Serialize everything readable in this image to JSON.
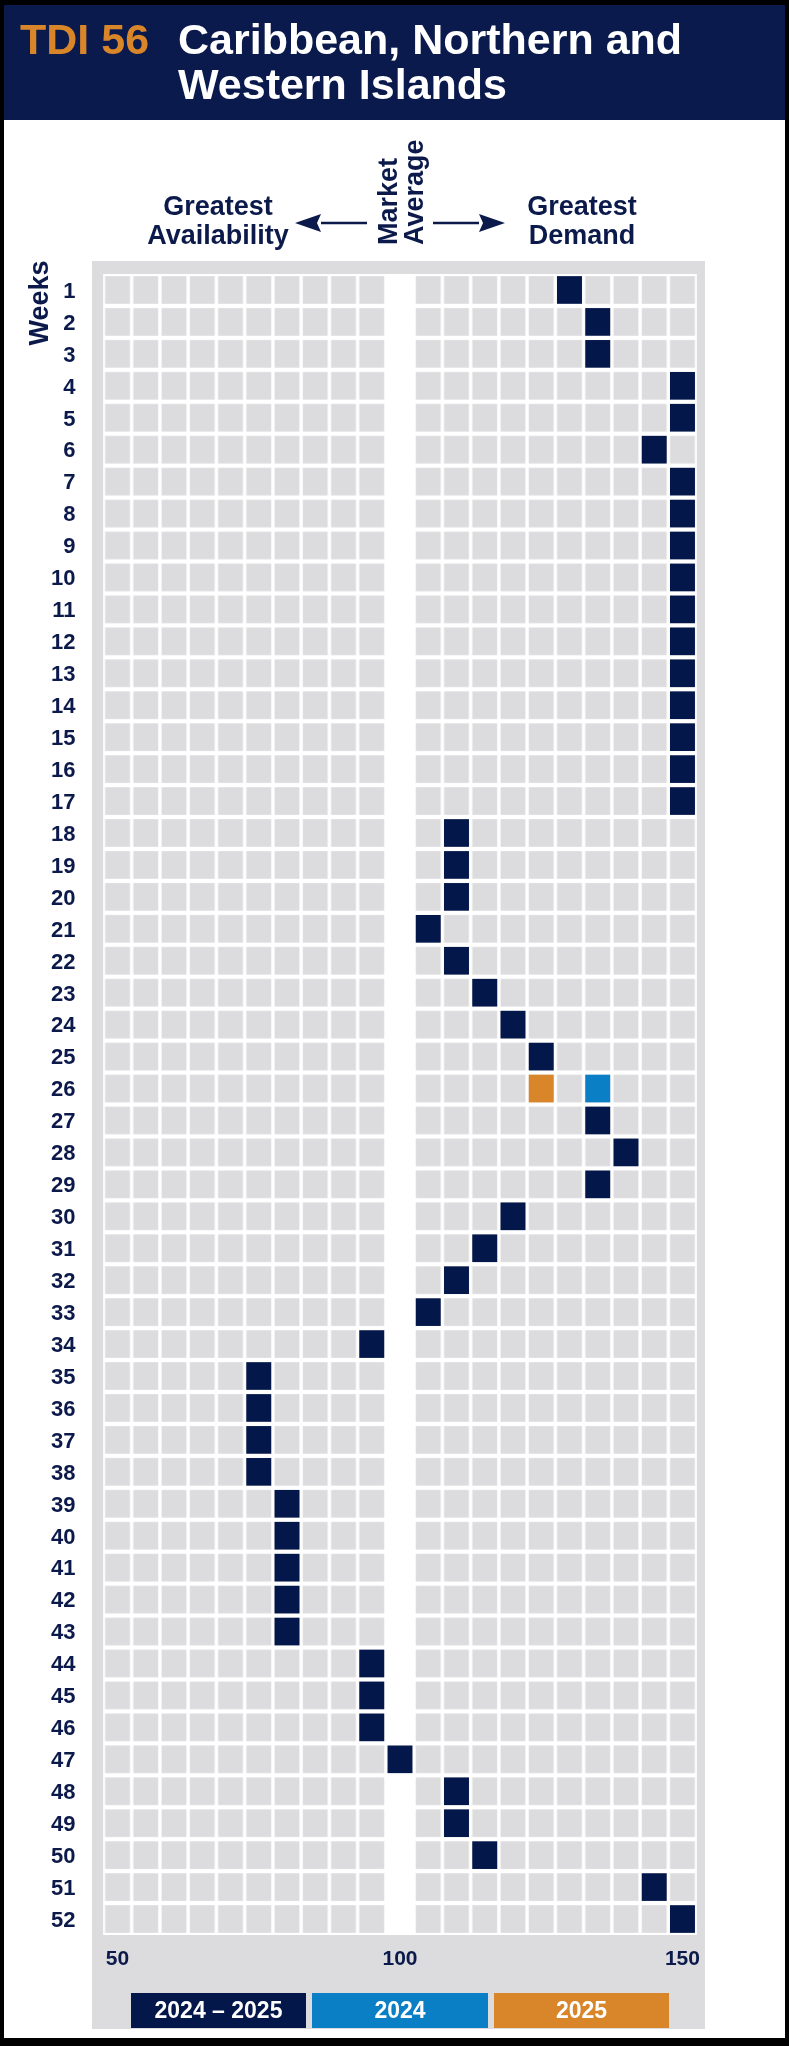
{
  "chart_data": {
    "type": "scatter",
    "title": "TDI 56",
    "subtitle": "Caribbean, Northern and Western Islands",
    "ylabel": "Weeks",
    "annotations": [
      "Greatest Availability",
      "Market Average",
      "Greatest Demand"
    ],
    "ref_lines": [
      {
        "axis": "x",
        "value": 100,
        "color": "#ffffff"
      }
    ],
    "series": [
      {
        "name": "2024 – 2025",
        "color": "#04174a",
        "x": [
          130,
          135,
          135,
          150,
          150,
          145,
          150,
          150,
          150,
          150,
          150,
          150,
          150,
          150,
          150,
          150,
          150,
          110,
          110,
          110,
          105,
          110,
          115,
          120,
          125,
          135,
          140,
          135,
          120,
          115,
          110,
          105,
          95,
          75,
          75,
          75,
          75,
          80,
          80,
          80,
          80,
          80,
          95,
          95,
          95,
          100,
          110,
          110,
          115,
          145,
          150
        ],
        "values": [
          1,
          2,
          3,
          4,
          5,
          6,
          7,
          8,
          9,
          10,
          11,
          12,
          13,
          14,
          15,
          16,
          17,
          18,
          19,
          20,
          21,
          22,
          23,
          24,
          25,
          27,
          28,
          29,
          30,
          31,
          32,
          33,
          34,
          35,
          36,
          37,
          38,
          39,
          40,
          41,
          42,
          43,
          44,
          45,
          46,
          47,
          48,
          49,
          50,
          51,
          52
        ]
      },
      {
        "name": "2024",
        "color": "#0a7fc6",
        "x": [
          135
        ],
        "values": [
          26
        ]
      },
      {
        "name": "2025",
        "color": "#d9862b",
        "x": [
          125
        ],
        "values": [
          26
        ]
      }
    ],
    "xlim": [
      47.5,
      152.5
    ],
    "xticks": [
      50,
      100,
      150
    ],
    "ylim": [
      52.5,
      0.5
    ],
    "yticks": [
      1,
      2,
      3,
      4,
      5,
      6,
      7,
      8,
      9,
      10,
      11,
      12,
      13,
      14,
      15,
      16,
      17,
      18,
      19,
      20,
      21,
      22,
      23,
      24,
      25,
      26,
      27,
      28,
      29,
      30,
      31,
      32,
      33,
      34,
      35,
      36,
      37,
      38,
      39,
      40,
      41,
      42,
      43,
      44,
      45,
      46,
      47,
      48,
      49,
      50,
      51,
      52
    ],
    "legend": "bottom",
    "marker": "square"
  }
}
